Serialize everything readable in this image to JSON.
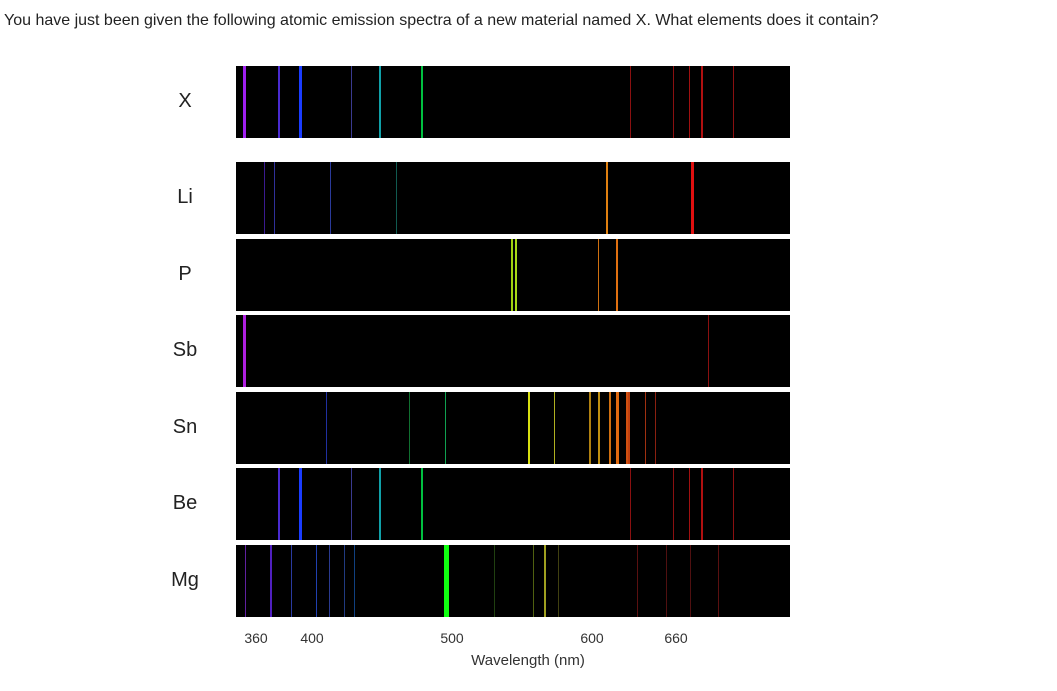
{
  "question": "You have just been given the following atomic emission spectra of a new material named X. What elements does it contain?",
  "axis_title": "Wavelength (nm)",
  "ticks": [
    360,
    400,
    500,
    600,
    660
  ],
  "spectra": [
    {
      "label": "X",
      "lines": [
        {
          "nm": 351,
          "color": "#a020f0",
          "w": 3
        },
        {
          "nm": 376,
          "color": "#4a2bd0",
          "w": 2
        },
        {
          "nm": 391,
          "color": "#1a3cff",
          "w": 3
        },
        {
          "nm": 428,
          "color": "#3a3a90",
          "w": 1
        },
        {
          "nm": 448,
          "color": "#10a0a8",
          "w": 2
        },
        {
          "nm": 478,
          "color": "#00c040",
          "w": 2
        },
        {
          "nm": 627,
          "color": "#8a1010",
          "w": 1
        },
        {
          "nm": 658,
          "color": "#8a1010",
          "w": 1
        },
        {
          "nm": 669,
          "color": "#a01010",
          "w": 1
        },
        {
          "nm": 678,
          "color": "#b01010",
          "w": 2
        },
        {
          "nm": 701,
          "color": "#8a1010",
          "w": 1
        }
      ]
    },
    {
      "label": "Li",
      "lines": [
        {
          "nm": 366,
          "color": "#3a1a90",
          "w": 1
        },
        {
          "nm": 373,
          "color": "#30309a",
          "w": 1
        },
        {
          "nm": 413,
          "color": "#2a3a9a",
          "w": 1
        },
        {
          "nm": 460,
          "color": "#105a50",
          "w": 1
        },
        {
          "nm": 610,
          "color": "#e08010",
          "w": 2
        },
        {
          "nm": 671,
          "color": "#e01010",
          "w": 3
        }
      ]
    },
    {
      "label": "P",
      "lines": [
        {
          "nm": 542,
          "color": "#a0d010",
          "w": 2
        },
        {
          "nm": 545,
          "color": "#a8d818",
          "w": 2
        },
        {
          "nm": 604,
          "color": "#d07010",
          "w": 1
        },
        {
          "nm": 617,
          "color": "#e07010",
          "w": 2
        }
      ]
    },
    {
      "label": "Sb",
      "lines": [
        {
          "nm": 351,
          "color": "#b020e0",
          "w": 3
        },
        {
          "nm": 683,
          "color": "#8a1010",
          "w": 1
        }
      ]
    },
    {
      "label": "Sn",
      "lines": [
        {
          "nm": 410,
          "color": "#2030a0",
          "w": 1
        },
        {
          "nm": 469,
          "color": "#107030",
          "w": 1
        },
        {
          "nm": 495,
          "color": "#10a050",
          "w": 1
        },
        {
          "nm": 554,
          "color": "#d8e010",
          "w": 2
        },
        {
          "nm": 573,
          "color": "#b0b020",
          "w": 1
        },
        {
          "nm": 598,
          "color": "#b08010",
          "w": 2
        },
        {
          "nm": 604,
          "color": "#c09010",
          "w": 2
        },
        {
          "nm": 612,
          "color": "#d07010",
          "w": 2
        },
        {
          "nm": 617,
          "color": "#e06a10",
          "w": 3
        },
        {
          "nm": 624,
          "color": "#d05010",
          "w": 2
        },
        {
          "nm": 626,
          "color": "#c04010",
          "w": 2
        },
        {
          "nm": 638,
          "color": "#a03010",
          "w": 1
        },
        {
          "nm": 645,
          "color": "#8a2010",
          "w": 1
        }
      ]
    },
    {
      "label": "Be",
      "lines": [
        {
          "nm": 376,
          "color": "#4a2bd0",
          "w": 2
        },
        {
          "nm": 391,
          "color": "#1a3cff",
          "w": 3
        },
        {
          "nm": 428,
          "color": "#3a3a90",
          "w": 1
        },
        {
          "nm": 448,
          "color": "#10a0a8",
          "w": 2
        },
        {
          "nm": 478,
          "color": "#00c040",
          "w": 2
        },
        {
          "nm": 627,
          "color": "#8a1010",
          "w": 1
        },
        {
          "nm": 658,
          "color": "#8a1010",
          "w": 1
        },
        {
          "nm": 669,
          "color": "#a01010",
          "w": 1
        },
        {
          "nm": 678,
          "color": "#b01010",
          "w": 2
        },
        {
          "nm": 701,
          "color": "#8a1010",
          "w": 1
        }
      ]
    },
    {
      "label": "Mg",
      "lines": [
        {
          "nm": 352,
          "color": "#6020a0",
          "w": 1
        },
        {
          "nm": 370,
          "color": "#5020c0",
          "w": 2
        },
        {
          "nm": 385,
          "color": "#2a3aa0",
          "w": 1
        },
        {
          "nm": 403,
          "color": "#2040b0",
          "w": 1
        },
        {
          "nm": 412,
          "color": "#2a3a90",
          "w": 1
        },
        {
          "nm": 423,
          "color": "#203a80",
          "w": 1
        },
        {
          "nm": 430,
          "color": "#104080",
          "w": 1
        },
        {
          "nm": 494,
          "color": "#10ff10",
          "w": 5
        },
        {
          "nm": 530,
          "color": "#204010",
          "w": 1
        },
        {
          "nm": 558,
          "color": "#506010",
          "w": 1
        },
        {
          "nm": 566,
          "color": "#a0a020",
          "w": 2
        },
        {
          "nm": 576,
          "color": "#404010",
          "w": 1
        },
        {
          "nm": 632,
          "color": "#5a1010",
          "w": 1
        },
        {
          "nm": 653,
          "color": "#501010",
          "w": 1
        },
        {
          "nm": 670,
          "color": "#501010",
          "w": 1
        },
        {
          "nm": 690,
          "color": "#5a1010",
          "w": 1
        }
      ]
    }
  ]
}
